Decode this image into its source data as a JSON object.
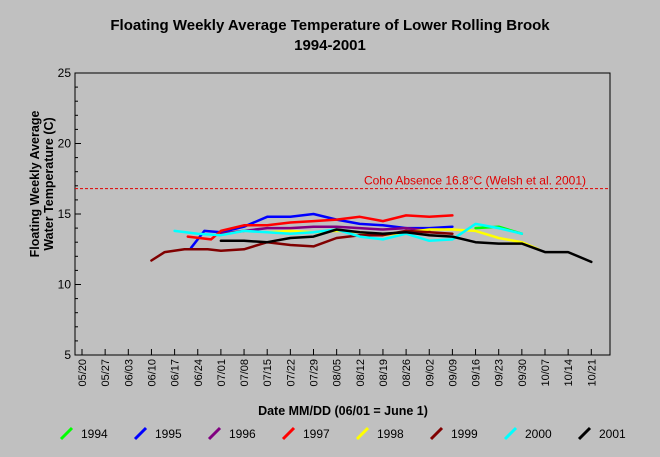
{
  "chart_data": {
    "type": "line",
    "title": "Floating Weekly Average Temperature of Lower Rolling Brook",
    "subtitle": "1994-2001",
    "xlabel": "Date MM/DD (06/01 = June 1)",
    "ylabel": [
      "Floating Weekly Average",
      "Water Temperature (C)"
    ],
    "ylim": [
      5,
      25
    ],
    "yticks": [
      5,
      10,
      15,
      20,
      25
    ],
    "xticks": [
      "05/20",
      "05/27",
      "06/03",
      "06/10",
      "06/17",
      "06/24",
      "07/01",
      "07/08",
      "07/15",
      "07/22",
      "07/29",
      "08/05",
      "08/12",
      "08/19",
      "08/26",
      "09/02",
      "09/09",
      "09/16",
      "09/23",
      "09/30",
      "10/07",
      "10/14",
      "10/21"
    ],
    "grid": false,
    "legend_position": "bottom",
    "annotation": {
      "text": "Coho Absence 16.8°C (Welsh et al. 2001)",
      "y": 16.8,
      "color": "#e00000"
    },
    "series": [
      {
        "name": "1994",
        "color": "#00ff00",
        "x": [
          "09/16",
          "09/23",
          "09/30"
        ],
        "y": [
          14.0,
          14.1,
          13.6
        ]
      },
      {
        "name": "1995",
        "color": "#0000ff",
        "x": [
          "06/22",
          "06/26",
          "07/01",
          "07/08",
          "07/15",
          "07/22",
          "07/29",
          "08/05",
          "08/12",
          "08/19",
          "08/26",
          "09/02",
          "09/09"
        ],
        "y": [
          12.6,
          13.8,
          13.7,
          14.1,
          14.8,
          14.8,
          15.0,
          14.6,
          14.3,
          14.2,
          14.0,
          14.0,
          14.1
        ]
      },
      {
        "name": "1996",
        "color": "#800080",
        "x": [
          "07/01",
          "07/08",
          "07/15",
          "07/22",
          "07/29",
          "08/05",
          "08/12",
          "08/19",
          "08/26",
          "09/02"
        ],
        "y": [
          13.6,
          13.8,
          14.0,
          14.0,
          14.1,
          14.1,
          14.0,
          13.9,
          14.0,
          13.8
        ]
      },
      {
        "name": "1997",
        "color": "#ff0000",
        "x": [
          "06/21",
          "06/28",
          "07/01",
          "07/08",
          "07/15",
          "07/22",
          "07/29",
          "08/05",
          "08/12",
          "08/19",
          "08/26",
          "09/02",
          "09/09"
        ],
        "y": [
          13.4,
          13.2,
          13.8,
          14.2,
          14.2,
          14.4,
          14.5,
          14.6,
          14.8,
          14.5,
          14.9,
          14.8,
          14.9
        ]
      },
      {
        "name": "1998",
        "color": "#ffff00",
        "x": [
          "07/15",
          "07/22",
          "07/29",
          "08/05",
          "08/12",
          "08/19",
          "08/26",
          "09/02",
          "09/09",
          "09/16",
          "09/23",
          "09/30",
          "10/05"
        ],
        "y": [
          13.7,
          13.8,
          13.7,
          13.8,
          13.7,
          13.5,
          13.7,
          13.9,
          13.9,
          13.8,
          13.3,
          13.0,
          12.5
        ]
      },
      {
        "name": "1999",
        "color": "#800000",
        "x": [
          "06/10",
          "06/14",
          "06/20",
          "06/27",
          "07/01",
          "07/08",
          "07/15",
          "07/22",
          "07/29",
          "08/05",
          "08/12",
          "08/19",
          "08/26",
          "09/02",
          "09/09"
        ],
        "y": [
          11.7,
          12.3,
          12.5,
          12.5,
          12.4,
          12.5,
          13.0,
          12.8,
          12.7,
          13.3,
          13.5,
          13.5,
          13.8,
          13.7,
          13.6
        ]
      },
      {
        "name": "2000",
        "color": "#00ffff",
        "x": [
          "06/17",
          "06/24",
          "07/01",
          "07/08",
          "07/15",
          "07/22",
          "07/29",
          "08/05",
          "08/12",
          "08/19",
          "08/26",
          "09/02",
          "09/09",
          "09/16",
          "09/23",
          "09/30"
        ],
        "y": [
          13.8,
          13.6,
          13.5,
          13.8,
          13.7,
          13.6,
          13.7,
          13.9,
          13.4,
          13.2,
          13.6,
          13.1,
          13.2,
          14.3,
          14.0,
          13.6
        ]
      },
      {
        "name": "2001",
        "color": "#000000",
        "x": [
          "07/01",
          "07/08",
          "07/15",
          "07/22",
          "07/29",
          "08/05",
          "08/12",
          "08/19",
          "08/26",
          "09/02",
          "09/09",
          "09/16",
          "09/23",
          "09/30",
          "10/07",
          "10/14",
          "10/21"
        ],
        "y": [
          13.1,
          13.1,
          13.0,
          13.3,
          13.4,
          13.9,
          13.7,
          13.6,
          13.7,
          13.5,
          13.4,
          13.0,
          12.9,
          12.9,
          12.3,
          12.3,
          11.6
        ]
      }
    ]
  }
}
